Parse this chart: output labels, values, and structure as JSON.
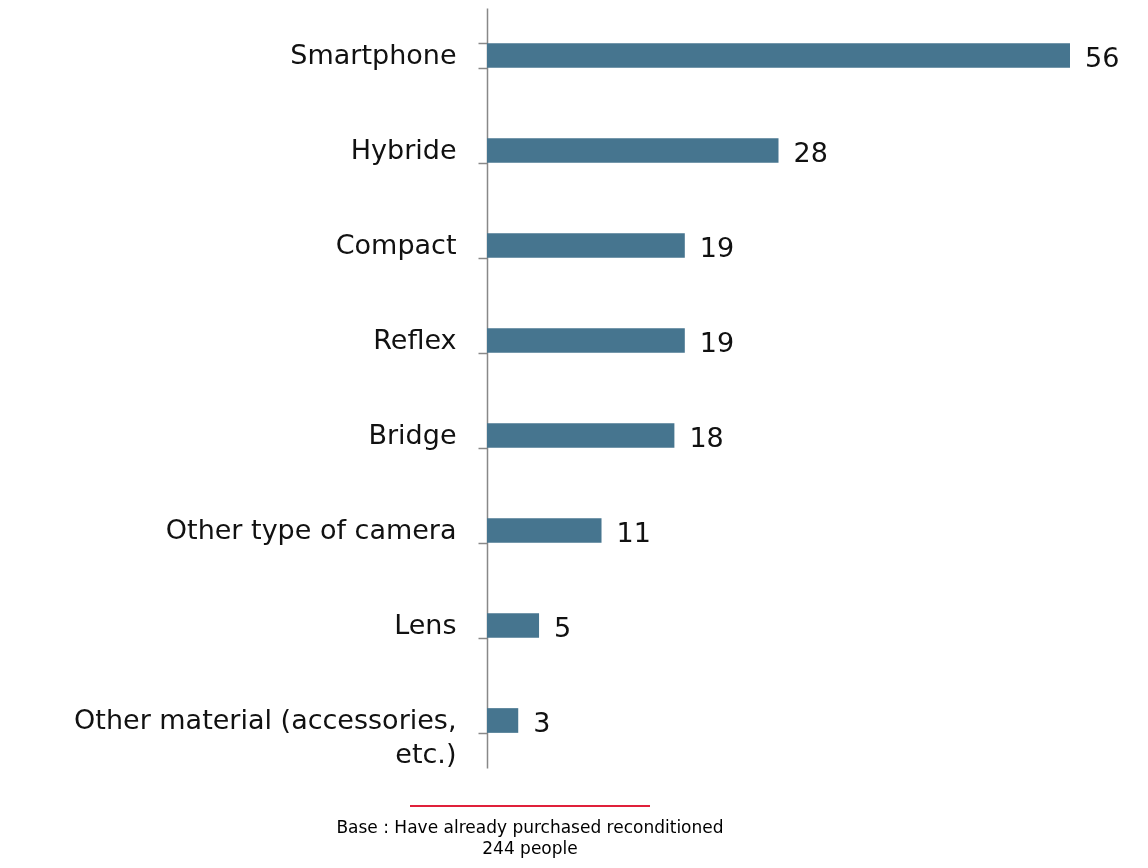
{
  "chart_data": {
    "type": "bar",
    "orientation": "horizontal",
    "data_labels": true,
    "categories": [
      "Smartphone",
      "Hybride",
      "Compact",
      "Reflex",
      "Bridge",
      "Other type of camera",
      "Lens",
      "Other material (accessories, etc.)"
    ],
    "values": [
      56,
      28,
      19,
      19,
      18,
      11,
      5,
      3
    ],
    "color": "#46758f",
    "annotations": [
      "Base : Have already purchased reconditioned",
      "244 people"
    ]
  }
}
